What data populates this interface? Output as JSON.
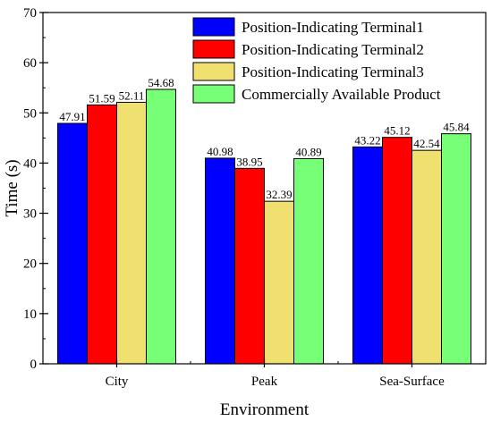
{
  "chart_data": {
    "type": "bar",
    "title": "",
    "xlabel": "Environment",
    "ylabel": "Time (s)",
    "ylim": [
      0,
      70
    ],
    "yticks": [
      0,
      10,
      20,
      30,
      40,
      50,
      60,
      70
    ],
    "categories": [
      "City",
      "Peak",
      "Sea-Surface"
    ],
    "series": [
      {
        "name": "Position-Indicating Terminal1",
        "color": "#0000ff",
        "values": [
          47.91,
          40.98,
          43.22
        ],
        "labels": [
          "47.91",
          "40.98",
          "43.22"
        ]
      },
      {
        "name": "Position-Indicating Terminal2",
        "color": "#ff0000",
        "values": [
          51.59,
          38.95,
          45.12
        ],
        "labels": [
          "51.59",
          "38.95",
          "45.12"
        ]
      },
      {
        "name": "Position-Indicating Terminal3",
        "color": "#f0e070",
        "values": [
          52.11,
          32.39,
          42.54
        ],
        "labels": [
          "52.11",
          "32.39",
          "42.54"
        ]
      },
      {
        "name": "Commercially Available Product",
        "color": "#77ff77",
        "values": [
          54.68,
          40.89,
          45.84
        ],
        "labels": [
          "54.68",
          "40.89",
          "45.84"
        ]
      }
    ],
    "legend_position": "top-right",
    "grid": false
  }
}
